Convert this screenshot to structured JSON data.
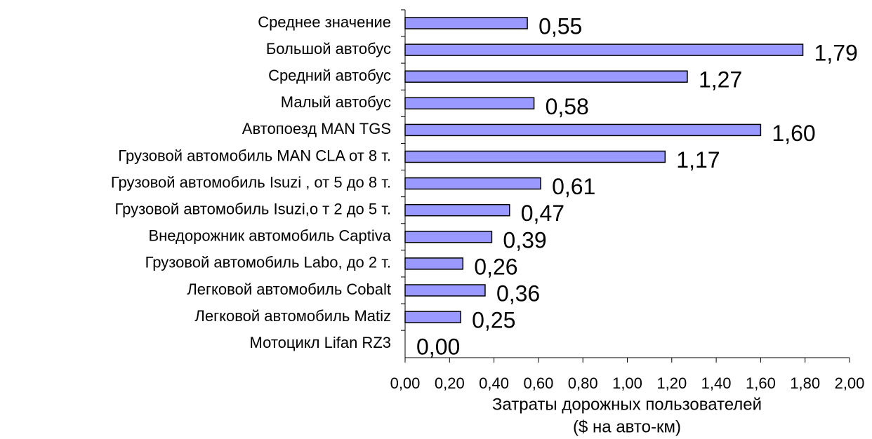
{
  "chart_data": {
    "type": "barh",
    "categories": [
      "Среднее значение",
      "Большой автобус",
      "Средний автобус",
      "Малый автобус",
      "Автопоезд MAN TGS",
      "Грузовой автомобиль MAN CLA от 8 т.",
      "Грузовой автомобиль Isuzi  , от 5 до 8 т.",
      "Грузовой автомобиль Isuzi,о т 2 до 5 т.",
      "Внедорожник автомобиль Captiva",
      "Грузовой автомобиль Labo, до 2 т.",
      "Легковой автомобиль Cobalt",
      "Легковой автомобиль Matiz",
      "Мотоцикл Lifan RZ3"
    ],
    "values": [
      0.55,
      1.79,
      1.27,
      0.58,
      1.6,
      1.17,
      0.61,
      0.47,
      0.39,
      0.26,
      0.36,
      0.25,
      0.0
    ],
    "value_labels": [
      "0,55",
      "1,79",
      "1,27",
      "0,58",
      "1,60",
      "1,17",
      "0,61",
      "0,47",
      "0,39",
      "0,26",
      "0,36",
      "0,25",
      "0,00"
    ],
    "color": "#9999ff",
    "xlim": [
      0,
      2
    ],
    "xticks": [
      {
        "value": 0,
        "label": "0,00"
      },
      {
        "value": 0.2,
        "label": "0,20"
      },
      {
        "value": 0.4,
        "label": "0,40"
      },
      {
        "value": 0.6,
        "label": "0,60"
      },
      {
        "value": 0.8,
        "label": "0,80"
      },
      {
        "value": 1.0,
        "label": "1,00"
      },
      {
        "value": 1.2,
        "label": "1,20"
      },
      {
        "value": 1.4,
        "label": "1,40"
      },
      {
        "value": 1.6,
        "label": "1,60"
      },
      {
        "value": 1.8,
        "label": "1,80"
      },
      {
        "value": 2.0,
        "label": "2,00"
      }
    ],
    "x_label": [
      "Затраты дорожных пользователей",
      "($ на авто-км)"
    ]
  }
}
